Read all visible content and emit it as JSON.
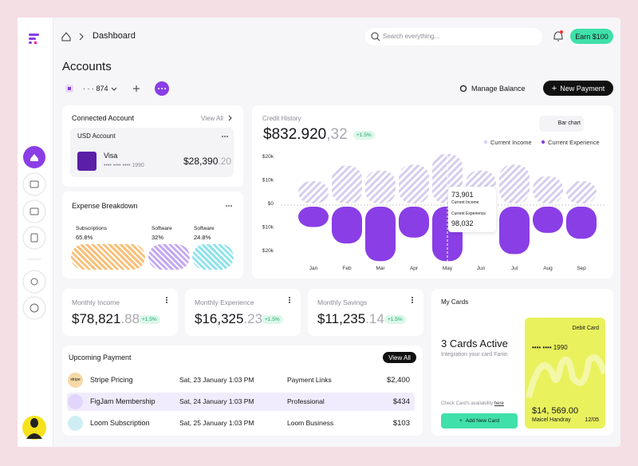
{
  "header": {
    "breadcrumb": "Dashboard",
    "search_placeholder": "Search everything...",
    "earn_button": "Earn $100"
  },
  "accounts": {
    "title": "Accounts",
    "account_number": "· · · 874",
    "manage_balance": "Manage Balance",
    "new_payment": "New Payment"
  },
  "connected_account": {
    "title": "Connected Account",
    "view_all": "View All",
    "account_type": "USD Account",
    "card_name": "Visa",
    "card_number": "•••• •••• •••• 1990",
    "amount_main": "$28,390",
    "amount_cents": ".20"
  },
  "expense_breakdown": {
    "title": "Expense Breakdown",
    "items": [
      {
        "label": "Subscriptions",
        "value": "65.8%",
        "color": "#f7c07a"
      },
      {
        "label": "Software",
        "value": "32%",
        "color": "#c4a9f2"
      },
      {
        "label": "Software",
        "value": "24.8%",
        "color": "#8fe3ec"
      }
    ]
  },
  "credit_history": {
    "amount_main": "$832.920",
    "amount_cents": ",32",
    "change": "+1.5%",
    "view_toggle": "Bar chart",
    "tooltip": {
      "income": "73,901",
      "income_label": "Current Income",
      "experience": "98,032",
      "experience_label": "Current Experience"
    }
  },
  "chart_data": {
    "type": "bar",
    "title": "Credit History",
    "categories": [
      "Jan",
      "Feb",
      "Mar",
      "Apr",
      "May",
      "Jun",
      "Jul",
      "Aug",
      "Sep"
    ],
    "series": [
      {
        "name": "Current Income",
        "color": "#d6cdef",
        "values": [
          9.5,
          16,
          14,
          16.5,
          21,
          14,
          16.5,
          11.5,
          9.5
        ]
      },
      {
        "name": "Current Experience",
        "color": "#8a3ee6",
        "values": [
          -10,
          -17,
          -24.5,
          -14.5,
          -24.5,
          null,
          -21.5,
          -12.5,
          -15
        ]
      }
    ],
    "ylim": [
      -25,
      22
    ],
    "yticks": [
      {
        "value": 20,
        "label": "$20k"
      },
      {
        "value": 10,
        "label": "$10k"
      },
      {
        "value": 0,
        "label": "$0"
      },
      {
        "value": -10,
        "label": "$10k"
      },
      {
        "value": -20,
        "label": "$20k"
      }
    ]
  },
  "stats": [
    {
      "label": "Monthly Income",
      "main": "$78,821",
      "cents": ".88",
      "change": "+1.5%"
    },
    {
      "label": "Monthly Experience",
      "main": "$16,325",
      "cents": ".23",
      "change": "+1.5%"
    },
    {
      "label": "Monthly Savings",
      "main": "$11,235",
      "cents": ".14",
      "change": "+1.5%"
    }
  ],
  "my_cards": {
    "title": "My Cards",
    "headline": "3 Cards Active",
    "subtitle": "Integration your card Fanin",
    "check_text": "Check Card's availability",
    "check_link": "here",
    "add_button": "Add New Card",
    "card": {
      "type": "Debit Card",
      "number": "•••• •••• 1990",
      "balance": "$14, 569.00",
      "holder": "Maicel Handray",
      "expiry": "12/05"
    }
  },
  "upcoming_payment": {
    "title": "Upcoming Payment",
    "view_all": "View All",
    "rows": [
      {
        "icon": "stripe",
        "name": "Stripe Pricing",
        "date": "Sat, 23 January 1:03 PM",
        "type": "Payment Links",
        "amount": "$2,400"
      },
      {
        "name": "FigJam Membership",
        "date": "Sat, 24 January 1:03 PM",
        "type": "Professional",
        "amount": "$434"
      },
      {
        "name": "Loom Subscription",
        "date": "Sat, 25 January 1:03 PM",
        "type": "Loom Business",
        "amount": "$103"
      }
    ]
  }
}
